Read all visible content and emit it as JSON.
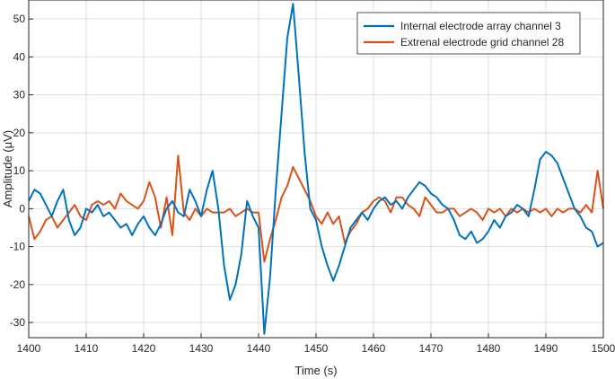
{
  "chart_data": {
    "type": "line",
    "xlabel": "Time (s)",
    "ylabel": "Amplitude (μV)",
    "xlim": [
      1400,
      1500
    ],
    "ylim": [
      -34,
      55
    ],
    "xticks": [
      1400,
      1410,
      1420,
      1430,
      1440,
      1450,
      1460,
      1470,
      1480,
      1490,
      1500
    ],
    "yticks": [
      -30,
      -20,
      -10,
      0,
      10,
      20,
      30,
      40,
      50
    ],
    "grid": true,
    "legend_position": "top-right",
    "series": [
      {
        "name": "Internal electrode array channel 3",
        "color": "#0072BD",
        "points": [
          [
            1400,
            2
          ],
          [
            1401,
            5
          ],
          [
            1402,
            4
          ],
          [
            1403,
            1
          ],
          [
            1404,
            -2
          ],
          [
            1405,
            2
          ],
          [
            1406,
            5
          ],
          [
            1407,
            -3
          ],
          [
            1408,
            -7
          ],
          [
            1409,
            -5
          ],
          [
            1410,
            0
          ],
          [
            1411,
            -1
          ],
          [
            1412,
            1
          ],
          [
            1413,
            -2
          ],
          [
            1414,
            -1
          ],
          [
            1415,
            -3
          ],
          [
            1416,
            -5
          ],
          [
            1417,
            -4
          ],
          [
            1418,
            -7
          ],
          [
            1419,
            -4
          ],
          [
            1420,
            -2
          ],
          [
            1421,
            -5
          ],
          [
            1422,
            -7
          ],
          [
            1423,
            -4
          ],
          [
            1424,
            0
          ],
          [
            1425,
            2
          ],
          [
            1426,
            -1
          ],
          [
            1427,
            -2
          ],
          [
            1428,
            5
          ],
          [
            1429,
            2
          ],
          [
            1430,
            -2
          ],
          [
            1431,
            5
          ],
          [
            1432,
            10
          ],
          [
            1433,
            0
          ],
          [
            1434,
            -15
          ],
          [
            1435,
            -24
          ],
          [
            1436,
            -20
          ],
          [
            1437,
            -12
          ],
          [
            1438,
            2
          ],
          [
            1439,
            -2
          ],
          [
            1440,
            -5
          ],
          [
            1441,
            -33
          ],
          [
            1442,
            -18
          ],
          [
            1443,
            5
          ],
          [
            1444,
            25
          ],
          [
            1445,
            45
          ],
          [
            1446,
            54
          ],
          [
            1447,
            35
          ],
          [
            1448,
            15
          ],
          [
            1449,
            0
          ],
          [
            1450,
            -3
          ],
          [
            1451,
            -10
          ],
          [
            1452,
            -15
          ],
          [
            1453,
            -19
          ],
          [
            1454,
            -15
          ],
          [
            1455,
            -10
          ],
          [
            1456,
            -5
          ],
          [
            1457,
            -3
          ],
          [
            1458,
            -1
          ],
          [
            1459,
            -3
          ],
          [
            1460,
            0
          ],
          [
            1461,
            2
          ],
          [
            1462,
            3
          ],
          [
            1463,
            1
          ],
          [
            1464,
            2
          ],
          [
            1465,
            0
          ],
          [
            1466,
            3
          ],
          [
            1467,
            5
          ],
          [
            1468,
            7
          ],
          [
            1469,
            6
          ],
          [
            1470,
            4
          ],
          [
            1471,
            3
          ],
          [
            1472,
            1
          ],
          [
            1473,
            0
          ],
          [
            1474,
            -3
          ],
          [
            1475,
            -7
          ],
          [
            1476,
            -8
          ],
          [
            1477,
            -6
          ],
          [
            1478,
            -9
          ],
          [
            1479,
            -8
          ],
          [
            1480,
            -6
          ],
          [
            1481,
            -3
          ],
          [
            1482,
            -5
          ],
          [
            1483,
            -2
          ],
          [
            1484,
            -1
          ],
          [
            1485,
            1
          ],
          [
            1486,
            0
          ],
          [
            1487,
            -2
          ],
          [
            1488,
            5
          ],
          [
            1489,
            13
          ],
          [
            1490,
            15
          ],
          [
            1491,
            14
          ],
          [
            1492,
            12
          ],
          [
            1493,
            8
          ],
          [
            1494,
            4
          ],
          [
            1495,
            0
          ],
          [
            1496,
            -2
          ],
          [
            1497,
            -5
          ],
          [
            1498,
            -6
          ],
          [
            1499,
            -10
          ],
          [
            1500,
            -9
          ]
        ]
      },
      {
        "name": "Extrenal electrode grid channel 28",
        "color": "#D95319",
        "points": [
          [
            1400,
            -2
          ],
          [
            1401,
            -8
          ],
          [
            1402,
            -6
          ],
          [
            1403,
            -3
          ],
          [
            1404,
            -2
          ],
          [
            1405,
            -5
          ],
          [
            1406,
            -3
          ],
          [
            1407,
            -1
          ],
          [
            1408,
            1
          ],
          [
            1409,
            -2
          ],
          [
            1410,
            -3
          ],
          [
            1411,
            1
          ],
          [
            1412,
            2
          ],
          [
            1413,
            1
          ],
          [
            1414,
            2
          ],
          [
            1415,
            0
          ],
          [
            1416,
            4
          ],
          [
            1417,
            2
          ],
          [
            1418,
            1
          ],
          [
            1419,
            0
          ],
          [
            1420,
            2
          ],
          [
            1421,
            7
          ],
          [
            1422,
            3
          ],
          [
            1423,
            -5
          ],
          [
            1424,
            3
          ],
          [
            1425,
            -7
          ],
          [
            1426,
            14
          ],
          [
            1427,
            -1
          ],
          [
            1428,
            -3
          ],
          [
            1429,
            0
          ],
          [
            1430,
            -2
          ],
          [
            1431,
            0
          ],
          [
            1432,
            -1
          ],
          [
            1433,
            -1
          ],
          [
            1434,
            -1
          ],
          [
            1435,
            0
          ],
          [
            1436,
            -2
          ],
          [
            1437,
            -1
          ],
          [
            1438,
            0
          ],
          [
            1439,
            -1
          ],
          [
            1440,
            -1
          ],
          [
            1441,
            -14
          ],
          [
            1442,
            -8
          ],
          [
            1443,
            -3
          ],
          [
            1444,
            3
          ],
          [
            1445,
            6
          ],
          [
            1446,
            11
          ],
          [
            1447,
            8
          ],
          [
            1448,
            5
          ],
          [
            1449,
            2
          ],
          [
            1450,
            -2
          ],
          [
            1451,
            -4
          ],
          [
            1452,
            -1
          ],
          [
            1453,
            -4
          ],
          [
            1454,
            -2
          ],
          [
            1455,
            -9
          ],
          [
            1456,
            -6
          ],
          [
            1457,
            -4
          ],
          [
            1458,
            -1
          ],
          [
            1459,
            0
          ],
          [
            1460,
            2
          ],
          [
            1461,
            3
          ],
          [
            1462,
            2
          ],
          [
            1463,
            -1
          ],
          [
            1464,
            3
          ],
          [
            1465,
            3
          ],
          [
            1466,
            1
          ],
          [
            1467,
            0
          ],
          [
            1468,
            -2
          ],
          [
            1469,
            3
          ],
          [
            1470,
            1
          ],
          [
            1471,
            -1
          ],
          [
            1472,
            -1
          ],
          [
            1473,
            0
          ],
          [
            1474,
            0
          ],
          [
            1475,
            -2
          ],
          [
            1476,
            -1
          ],
          [
            1477,
            0
          ],
          [
            1478,
            -1
          ],
          [
            1479,
            -3
          ],
          [
            1480,
            0
          ],
          [
            1481,
            -1
          ],
          [
            1482,
            0
          ],
          [
            1483,
            -2
          ],
          [
            1484,
            0
          ],
          [
            1485,
            -1
          ],
          [
            1486,
            0
          ],
          [
            1487,
            -1
          ],
          [
            1488,
            0
          ],
          [
            1489,
            -1
          ],
          [
            1490,
            0
          ],
          [
            1491,
            -2
          ],
          [
            1492,
            0
          ],
          [
            1493,
            -1
          ],
          [
            1494,
            0
          ],
          [
            1495,
            0
          ],
          [
            1496,
            -1
          ],
          [
            1497,
            1
          ],
          [
            1498,
            -1
          ],
          [
            1499,
            10
          ],
          [
            1500,
            0
          ]
        ]
      }
    ]
  }
}
